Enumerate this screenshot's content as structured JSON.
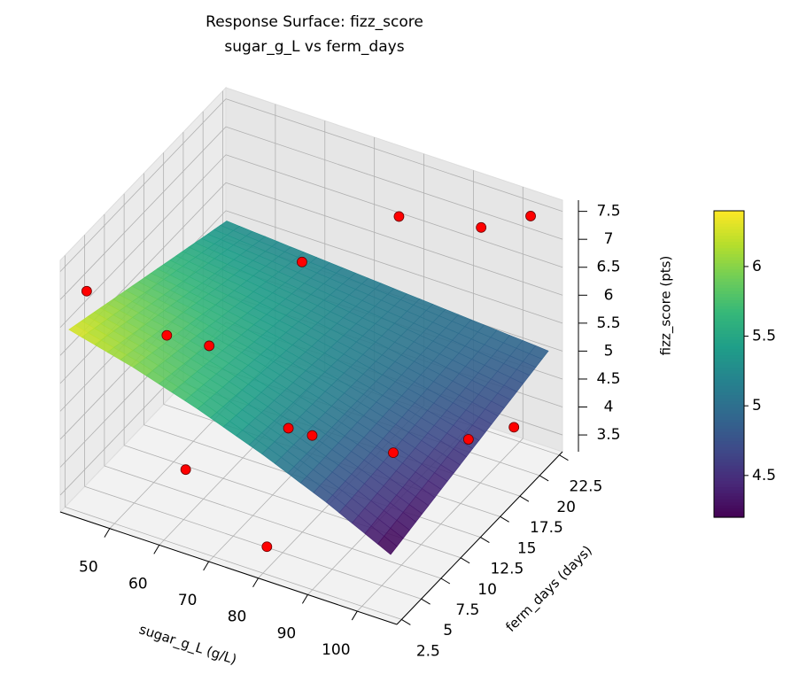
{
  "chart_data": {
    "type": "surface3d",
    "title": "Response Surface: fizz_score",
    "subtitle": "sugar_g_L vs ferm_days",
    "x_label": "sugar_g_L (g/L)",
    "y_label": "ferm_days (days)",
    "z_label": "fizz_score (pts)",
    "xlim": [
      40,
      108
    ],
    "xticks": [
      50,
      60,
      70,
      80,
      90,
      100
    ],
    "ylim": [
      1.9,
      22.9
    ],
    "yticks": [
      2.5,
      5.0,
      7.5,
      10.0,
      12.5,
      15.0,
      17.5,
      20.0,
      22.5
    ],
    "zlim": [
      3.2,
      7.7
    ],
    "zticks": [
      3.5,
      4.0,
      4.5,
      5.0,
      5.5,
      6.0,
      6.5,
      7.0,
      7.5
    ],
    "surface": {
      "x": [
        40,
        53,
        66,
        79,
        92,
        105
      ],
      "y": [
        3,
        7,
        11,
        15,
        19,
        23
      ],
      "z": [
        [
          6.3,
          6.01,
          5.65,
          5.23,
          4.75,
          4.2
        ],
        [
          6.1,
          5.85,
          5.55,
          5.19,
          4.79,
          4.34
        ],
        [
          5.9,
          5.7,
          5.45,
          5.17,
          4.84,
          4.48
        ],
        [
          5.7,
          5.53,
          5.35,
          5.13,
          4.89,
          4.62
        ],
        [
          5.5,
          5.38,
          5.24,
          5.1,
          4.94,
          4.76
        ],
        [
          5.3,
          5.22,
          5.14,
          5.06,
          4.98,
          4.9
        ]
      ]
    },
    "points": {
      "color": "#ff0000",
      "x": [
        42,
        55,
        62,
        54,
        60,
        78,
        93,
        103,
        78,
        88,
        100,
        106,
        80,
        70
      ],
      "y": [
        4,
        6,
        4,
        12,
        20,
        21,
        22,
        22,
        10,
        14,
        16,
        18,
        3,
        12
      ],
      "z": [
        6.9,
        6.2,
        4.3,
        5.1,
        5.6,
        6.8,
        6.9,
        7.4,
        4.5,
        3.9,
        4.2,
        4.3,
        3.6,
        4.1
      ]
    },
    "colorbar_lim": [
      4.2,
      6.4
    ],
    "colorbar_ticks": [
      4.5,
      5.0,
      5.5,
      6.0
    ],
    "colormap": "viridis",
    "grid": true
  }
}
